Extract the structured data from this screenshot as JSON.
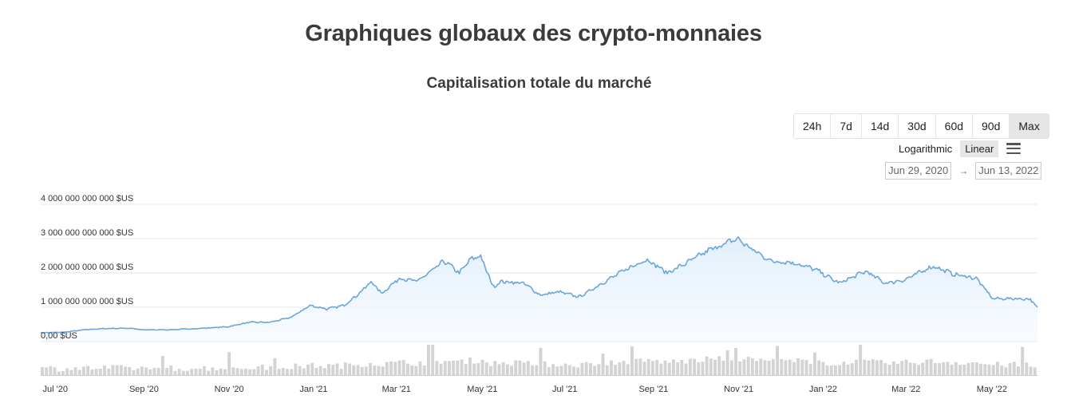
{
  "header": {
    "page_title": "Graphiques globaux des crypto-monnaies"
  },
  "controls": {
    "ranges": [
      "24h",
      "7d",
      "14d",
      "30d",
      "60d",
      "90d",
      "Max"
    ],
    "active_range": "Max",
    "scale_log_label": "Logarithmic",
    "scale_linear_label": "Linear",
    "active_scale": "Linear",
    "date_from": "Jun 29, 2020",
    "date_arrow": "→",
    "date_to": "Jun 13, 2022"
  },
  "colors": {
    "line": "#6aa6dc",
    "area_top": "#dfeefb",
    "volume": "#d3d3d3",
    "grid": "#e6e6e6"
  },
  "chart_data": {
    "type": "area",
    "title": "Capitalisation totale du marché",
    "ylim": [
      0,
      4000000000000
    ],
    "y_ticks": [
      {
        "value": 0,
        "label": "0,00 $US"
      },
      {
        "value": 1000000000000,
        "label": "1 000 000 000 000 $US"
      },
      {
        "value": 2000000000000,
        "label": "2 000 000 000 000 $US"
      },
      {
        "value": 3000000000000,
        "label": "3 000 000 000 000 $US"
      },
      {
        "value": 4000000000000,
        "label": "4 000 000 000 000 $US"
      }
    ],
    "x_range": [
      "2020-06-29",
      "2022-06-13"
    ],
    "x_ticks": [
      {
        "date": "2020-07-01",
        "label": "Jul '20"
      },
      {
        "date": "2020-09-01",
        "label": "Sep '20"
      },
      {
        "date": "2020-11-01",
        "label": "Nov '20"
      },
      {
        "date": "2021-01-01",
        "label": "Jan '21"
      },
      {
        "date": "2021-03-01",
        "label": "Mar '21"
      },
      {
        "date": "2021-05-01",
        "label": "May '21"
      },
      {
        "date": "2021-07-01",
        "label": "Jul '21"
      },
      {
        "date": "2021-09-01",
        "label": "Sep '21"
      },
      {
        "date": "2021-11-01",
        "label": "Nov '21"
      },
      {
        "date": "2022-01-01",
        "label": "Jan '22"
      },
      {
        "date": "2022-03-01",
        "label": "Mar '22"
      },
      {
        "date": "2022-05-01",
        "label": "May '22"
      }
    ],
    "series": [
      {
        "values_unit": "USD",
        "points": [
          [
            "2020-06-29",
            260000000000
          ],
          [
            "2020-07-15",
            270000000000
          ],
          [
            "2020-08-01",
            350000000000
          ],
          [
            "2020-08-15",
            380000000000
          ],
          [
            "2020-09-01",
            390000000000
          ],
          [
            "2020-09-10",
            340000000000
          ],
          [
            "2020-10-01",
            345000000000
          ],
          [
            "2020-10-20",
            380000000000
          ],
          [
            "2020-11-10",
            430000000000
          ],
          [
            "2020-11-25",
            560000000000
          ],
          [
            "2020-12-10",
            560000000000
          ],
          [
            "2020-12-25",
            700000000000
          ],
          [
            "2021-01-08",
            1050000000000
          ],
          [
            "2021-01-20",
            950000000000
          ],
          [
            "2021-02-01",
            1050000000000
          ],
          [
            "2021-02-12",
            1400000000000
          ],
          [
            "2021-02-21",
            1750000000000
          ],
          [
            "2021-02-28",
            1400000000000
          ],
          [
            "2021-03-13",
            1850000000000
          ],
          [
            "2021-03-25",
            1750000000000
          ],
          [
            "2021-04-05",
            2050000000000
          ],
          [
            "2021-04-14",
            2350000000000
          ],
          [
            "2021-04-25",
            2000000000000
          ],
          [
            "2021-05-03",
            2400000000000
          ],
          [
            "2021-05-10",
            2500000000000
          ],
          [
            "2021-05-19",
            1600000000000
          ],
          [
            "2021-05-25",
            1750000000000
          ],
          [
            "2021-06-10",
            1700000000000
          ],
          [
            "2021-06-22",
            1350000000000
          ],
          [
            "2021-07-05",
            1450000000000
          ],
          [
            "2021-07-20",
            1300000000000
          ],
          [
            "2021-08-05",
            1700000000000
          ],
          [
            "2021-08-20",
            2050000000000
          ],
          [
            "2021-09-06",
            2400000000000
          ],
          [
            "2021-09-21",
            2000000000000
          ],
          [
            "2021-10-05",
            2300000000000
          ],
          [
            "2021-10-20",
            2650000000000
          ],
          [
            "2021-11-10",
            3000000000000
          ],
          [
            "2021-11-20",
            2700000000000
          ],
          [
            "2021-12-04",
            2350000000000
          ],
          [
            "2021-12-20",
            2300000000000
          ],
          [
            "2022-01-05",
            2100000000000
          ],
          [
            "2022-01-22",
            1700000000000
          ],
          [
            "2022-02-10",
            2050000000000
          ],
          [
            "2022-02-24",
            1700000000000
          ],
          [
            "2022-03-10",
            1800000000000
          ],
          [
            "2022-03-30",
            2200000000000
          ],
          [
            "2022-04-15",
            1950000000000
          ],
          [
            "2022-04-30",
            1850000000000
          ],
          [
            "2022-05-12",
            1250000000000
          ],
          [
            "2022-05-30",
            1250000000000
          ],
          [
            "2022-06-08",
            1230000000000
          ],
          [
            "2022-06-13",
            1000000000000
          ]
        ]
      }
    ]
  }
}
